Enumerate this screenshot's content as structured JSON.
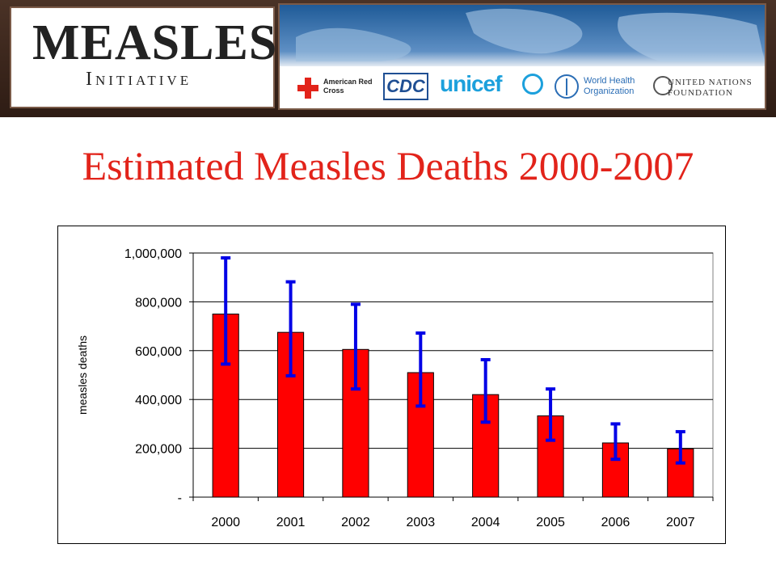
{
  "header": {
    "logo_title": "MEASLES",
    "logo_subtitle": "Initiative",
    "partners": {
      "red_cross": "American Red Cross",
      "cdc": "CDC",
      "unicef": "unicef",
      "who": "World Health Organization",
      "unf": "UNITED NATIONS FOUNDATION"
    }
  },
  "slide": {
    "title": "Estimated Measles Deaths 2000-2007"
  },
  "colors": {
    "title": "#e2231a",
    "bar_fill": "#ff0000",
    "error_bar": "#0000e6"
  },
  "chart_data": {
    "type": "bar",
    "categories": [
      "2000",
      "2001",
      "2002",
      "2003",
      "2004",
      "2005",
      "2006",
      "2007"
    ],
    "values": [
      750000,
      675000,
      605000,
      510000,
      420000,
      333000,
      222000,
      198000
    ],
    "error_low": [
      545000,
      497000,
      443000,
      373000,
      307000,
      233000,
      155000,
      140000
    ],
    "error_high": [
      980000,
      882000,
      790000,
      672000,
      563000,
      443000,
      300000,
      268000
    ],
    "ylabel": "measles deaths",
    "xlabel": "",
    "ylim": [
      0,
      1000000
    ],
    "yticks": [
      0,
      200000,
      400000,
      600000,
      800000,
      1000000
    ],
    "ytick_labels": [
      "-",
      "200,000",
      "400,000",
      "600,000",
      "800,000",
      "1,000,000"
    ],
    "grid": true,
    "legend": "none"
  }
}
